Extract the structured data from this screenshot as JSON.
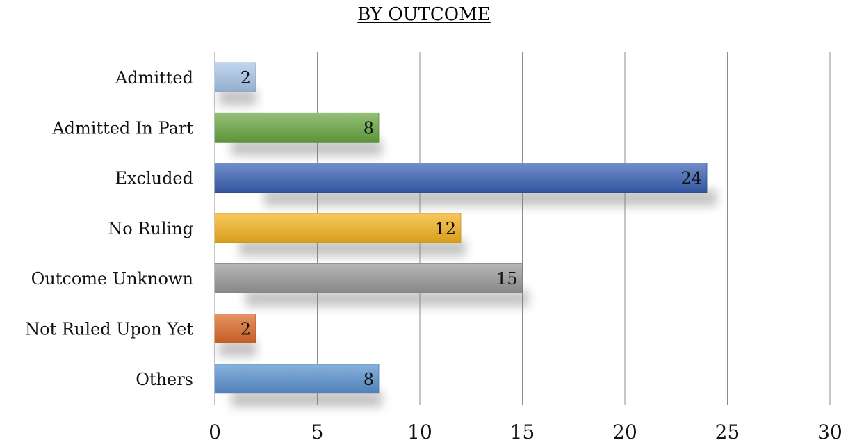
{
  "chart_data": {
    "type": "bar",
    "orientation": "horizontal",
    "title": "BY OUTCOME",
    "xlabel": "",
    "ylabel": "",
    "xlim": [
      0,
      30
    ],
    "x_ticks": [
      0,
      5,
      10,
      15,
      20,
      25,
      30
    ],
    "grid": "vertical gridlines",
    "legend": "none",
    "categories": [
      "Admitted",
      "Admitted In Part",
      "Excluded",
      "No Ruling",
      "Outcome Unknown",
      "Not Ruled Upon Yet",
      "Others"
    ],
    "values": [
      2,
      8,
      24,
      12,
      15,
      2,
      8
    ],
    "data_labels": [
      "2",
      "8",
      "24",
      "12",
      "15",
      "2",
      "8"
    ],
    "colors": [
      "#a9c6ea",
      "#6aa843",
      "#3a62b5",
      "#f5b320",
      "#9a9a9a",
      "#dd6a28",
      "#5a93d1"
    ]
  }
}
